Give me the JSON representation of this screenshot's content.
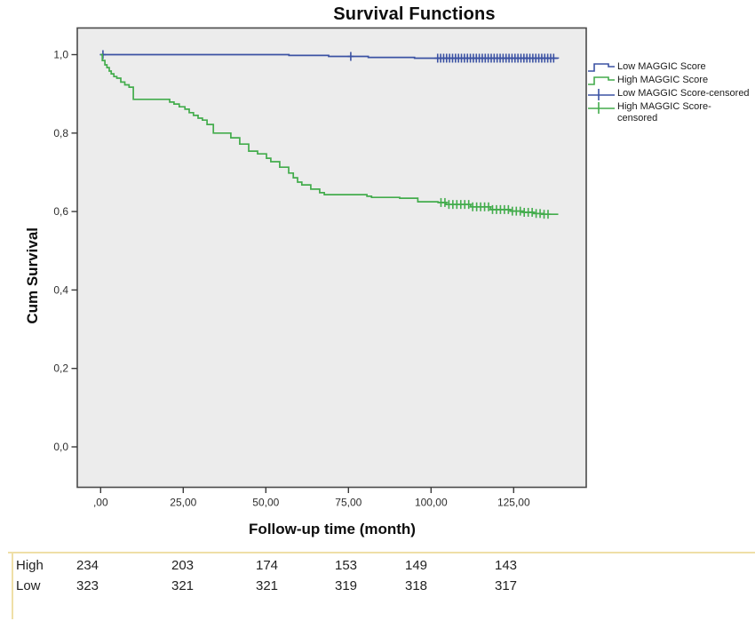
{
  "chart_data": {
    "type": "line",
    "subtype": "kaplan-meier-step-plot",
    "title": "Survival Functions",
    "xlabel": "Follow-up time (month)",
    "ylabel": "Cum Survival",
    "xlim": [
      -7,
      147
    ],
    "ylim": [
      -0.105,
      1.07
    ],
    "grid": false,
    "plot_bg_color": "#ececec",
    "frame_color": "#4a4a4a",
    "x_ticks": {
      "values": [
        0,
        25,
        50,
        75,
        100,
        125
      ],
      "labels": [
        ",00",
        "25,00",
        "50,00",
        "75,00",
        "100,00",
        "125,00"
      ]
    },
    "y_ticks": {
      "values": [
        0.0,
        0.2,
        0.4,
        0.6,
        0.8,
        1.0
      ],
      "labels": [
        "0,0",
        "0,2",
        "0,4",
        "0,6",
        "0,8",
        "1,0"
      ]
    },
    "series": [
      {
        "name": "Low MAGGIC Score",
        "color": "#3b52a3",
        "steps": [
          [
            0,
            1.0
          ],
          [
            57.0,
            0.998
          ],
          [
            69.0,
            0.9955
          ],
          [
            81.0,
            0.993
          ],
          [
            95.0,
            0.991
          ],
          [
            138.5,
            0.99
          ]
        ],
        "censored_times": [
          0.7,
          75.7,
          102.0,
          102.9,
          103.8,
          104.7,
          105.6,
          106.5,
          107.4,
          108.3,
          109.2,
          110.1,
          111.0,
          111.9,
          112.8,
          113.7,
          114.6,
          115.5,
          116.4,
          117.3,
          118.2,
          119.1,
          120.0,
          120.9,
          121.8,
          122.7,
          123.6,
          124.5,
          125.4,
          126.3,
          127.2,
          128.1,
          129.0,
          129.9,
          130.8,
          131.7,
          132.6,
          133.5,
          134.4,
          135.3,
          136.2,
          137.1
        ]
      },
      {
        "name": "High MAGGIC Score",
        "color": "#43ac4c",
        "steps": [
          [
            0,
            1.0
          ],
          [
            0.5,
            0.985
          ],
          [
            1.3,
            0.974
          ],
          [
            1.9,
            0.967
          ],
          [
            2.6,
            0.958
          ],
          [
            3.2,
            0.951
          ],
          [
            4.0,
            0.944
          ],
          [
            4.9,
            0.94
          ],
          [
            6.1,
            0.93
          ],
          [
            7.3,
            0.923
          ],
          [
            8.6,
            0.917
          ],
          [
            9.9,
            0.886
          ],
          [
            20.9,
            0.879
          ],
          [
            22.2,
            0.874
          ],
          [
            23.8,
            0.867
          ],
          [
            25.5,
            0.861
          ],
          [
            26.8,
            0.852
          ],
          [
            28.1,
            0.845
          ],
          [
            29.5,
            0.838
          ],
          [
            30.8,
            0.833
          ],
          [
            32.2,
            0.822
          ],
          [
            34.1,
            0.8
          ],
          [
            39.4,
            0.788
          ],
          [
            42.1,
            0.772
          ],
          [
            44.8,
            0.754
          ],
          [
            47.5,
            0.747
          ],
          [
            50.2,
            0.736
          ],
          [
            51.5,
            0.727
          ],
          [
            54.2,
            0.713
          ],
          [
            56.9,
            0.698
          ],
          [
            58.3,
            0.686
          ],
          [
            59.6,
            0.675
          ],
          [
            60.9,
            0.668
          ],
          [
            63.6,
            0.657
          ],
          [
            66.3,
            0.648
          ],
          [
            67.7,
            0.643
          ],
          [
            80.6,
            0.639
          ],
          [
            82.0,
            0.636
          ],
          [
            90.5,
            0.634
          ],
          [
            96.0,
            0.625
          ],
          [
            102.1,
            0.623
          ],
          [
            104.5,
            0.618
          ],
          [
            112.0,
            0.612
          ],
          [
            118.0,
            0.605
          ],
          [
            124.0,
            0.601
          ],
          [
            128.0,
            0.598
          ],
          [
            131.0,
            0.595
          ],
          [
            134.0,
            0.593
          ],
          [
            138.5,
            0.593
          ]
        ],
        "censored_times": [
          103.0,
          104.2,
          105.4,
          106.6,
          107.8,
          109.0,
          110.2,
          111.4,
          112.6,
          113.8,
          115.0,
          116.2,
          117.4,
          118.6,
          119.8,
          121.0,
          122.2,
          123.4,
          124.6,
          125.8,
          127.0,
          128.2,
          129.4,
          130.6,
          131.8,
          133.0,
          134.2,
          135.4
        ]
      }
    ],
    "legend": {
      "position": "right",
      "entries": [
        {
          "label": "Low MAGGIC Score",
          "symbol": "step",
          "color": "#3b52a3"
        },
        {
          "label": "High MAGGIC Score",
          "symbol": "step",
          "color": "#43ac4c"
        },
        {
          "label": "Low MAGGIC Score-censored",
          "symbol": "plus",
          "color": "#3b52a3"
        },
        {
          "label": "High MAGGIC Score-censored",
          "symbol": "plus",
          "color": "#43ac4c"
        }
      ]
    }
  },
  "risk_table": {
    "border_color": "#efdfa7",
    "rows": [
      {
        "label": "High",
        "values": [
          "234",
          "203",
          "174",
          "153",
          "149",
          "143"
        ]
      },
      {
        "label": "Low",
        "values": [
          "323",
          "321",
          "321",
          "319",
          "318",
          "317"
        ]
      }
    ]
  }
}
